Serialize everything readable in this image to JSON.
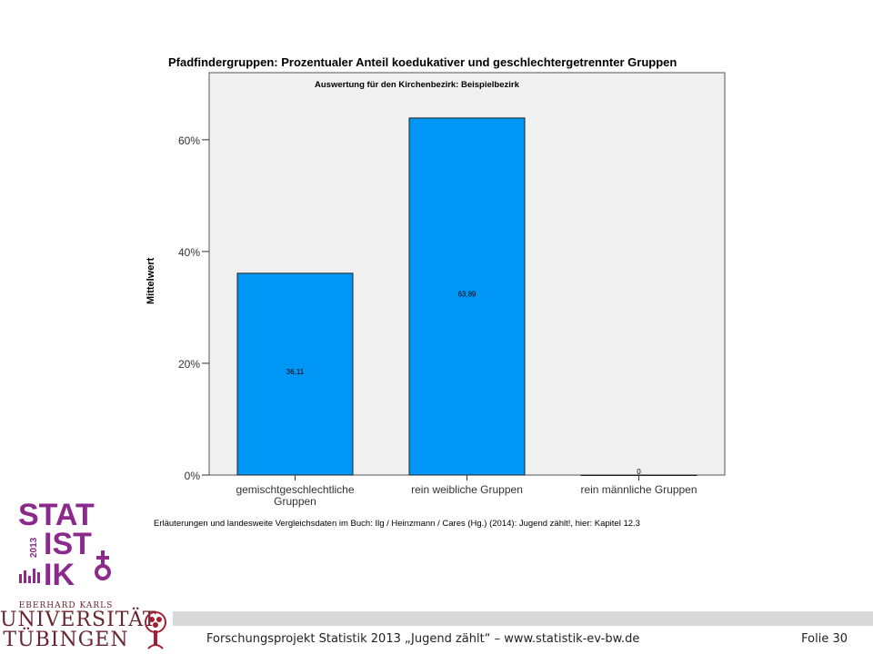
{
  "chart_data": {
    "type": "bar",
    "title": "Pfadfindergruppen: Prozentualer Anteil koedukativer und geschlechtergetrennter Gruppen",
    "subtitle": "Auswertung für den Kirchenbezirk: Beispielbezirk",
    "ylabel": "Mittelwert",
    "xlabel": "",
    "categories": [
      "gemischtgeschlechtliche Gruppen",
      "rein weibliche Gruppen",
      "rein männliche Gruppen"
    ],
    "category_lines": [
      [
        "gemischtgeschlechtliche",
        "Gruppen"
      ],
      [
        "rein weibliche Gruppen"
      ],
      [
        "rein männliche Gruppen"
      ]
    ],
    "values": [
      36.11,
      63.89,
      0
    ],
    "value_labels": [
      "36,11",
      "63,89",
      "0"
    ],
    "ylim": [
      0,
      72
    ],
    "yticks": [
      0,
      20,
      40,
      60
    ],
    "ytick_labels": [
      "0%",
      "20%",
      "40%",
      "60%"
    ],
    "grid": false,
    "legend": "none",
    "bar_color": "#0096f5",
    "bar_edge_color": "#222222",
    "plot_bg": "#f0f0f0"
  },
  "note": "Erläuterungen und landesweite Vergleichsdaten im Buch: Ilg / Heinzmann / Cares (Hg.) (2014): Jugend zählt!, hier: Kapitel 12.3",
  "footer": {
    "text": "Forschungsprojekt Statistik 2013 „Jugend zählt“ – www.statistik-ev-bw.de",
    "page": "Folie 30"
  },
  "logo": {
    "lines": [
      "STAT",
      "IST",
      "IK"
    ],
    "year": "2013",
    "color": "#8b2a8b",
    "icon": "gender-symbol-icon"
  },
  "university": {
    "line1": "EBERHARD KARLS",
    "line2": "UNIVERSITÄT",
    "line3": "TÜBINGEN",
    "color": "#6b2431",
    "icon": "tree-icon"
  }
}
